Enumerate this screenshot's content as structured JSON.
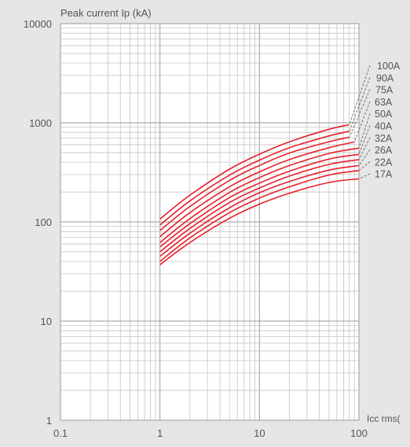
{
  "chart_data": {
    "type": "line",
    "title": "",
    "ylabel": "Peak current Ip (kA)",
    "xlabel": "Icc rms(",
    "x_scale": "log",
    "y_scale": "log",
    "xlim": [
      0.1,
      100
    ],
    "ylim": [
      1,
      10000
    ],
    "x_ticks": [
      {
        "value": 0.1,
        "label": "0.1"
      },
      {
        "value": 1,
        "label": "1"
      },
      {
        "value": 10,
        "label": "10"
      },
      {
        "value": 100,
        "label": "100"
      }
    ],
    "y_ticks": [
      {
        "value": 1,
        "label": "1"
      },
      {
        "value": 10,
        "label": "10"
      },
      {
        "value": 100,
        "label": "100"
      },
      {
        "value": 1000,
        "label": "1000"
      },
      {
        "value": 10000,
        "label": "10000"
      }
    ],
    "grid": true,
    "series_color": "#e8202a",
    "series": [
      {
        "name": "100A",
        "x": [
          1,
          2,
          5,
          10,
          20,
          50,
          80
        ],
        "y": [
          107,
          186,
          340,
          482,
          643,
          860,
          955
        ]
      },
      {
        "name": "90A",
        "x": [
          1,
          2,
          5,
          10,
          20,
          50,
          80
        ],
        "y": [
          93,
          163,
          296,
          420,
          560,
          737,
          820
        ]
      },
      {
        "name": "75A",
        "x": [
          1,
          2,
          5,
          10,
          20,
          50,
          80
        ],
        "y": [
          82,
          143,
          262,
          371,
          495,
          644,
          716
        ]
      },
      {
        "name": "63A",
        "x": [
          1,
          2,
          5,
          10,
          20,
          50,
          90
        ],
        "y": [
          71,
          124,
          226,
          320,
          426,
          560,
          640
        ]
      },
      {
        "name": "50A",
        "x": [
          1,
          2,
          5,
          10,
          20,
          50,
          100
        ],
        "y": [
          62,
          108,
          198,
          280,
          370,
          490,
          555
        ]
      },
      {
        "name": "40A",
        "x": [
          1,
          2,
          5,
          10,
          20,
          50,
          100
        ],
        "y": [
          56,
          96,
          176,
          246,
          325,
          430,
          480
        ]
      },
      {
        "name": "32A",
        "x": [
          1,
          2,
          5,
          10,
          20,
          50,
          100
        ],
        "y": [
          50,
          86,
          157,
          220,
          290,
          380,
          425
        ]
      },
      {
        "name": "26A",
        "x": [
          1,
          2,
          5,
          10,
          20,
          50,
          100
        ],
        "y": [
          45,
          77,
          139,
          197,
          256,
          333,
          370
        ]
      },
      {
        "name": "22A",
        "x": [
          1,
          2,
          5,
          10,
          20,
          50,
          100
        ],
        "y": [
          40,
          69,
          124,
          174,
          226,
          297,
          330
        ]
      },
      {
        "name": "17A",
        "x": [
          1,
          2,
          5,
          10,
          20,
          50,
          100
        ],
        "y": [
          37,
          62,
          109,
          151,
          195,
          250,
          272
        ]
      }
    ]
  }
}
